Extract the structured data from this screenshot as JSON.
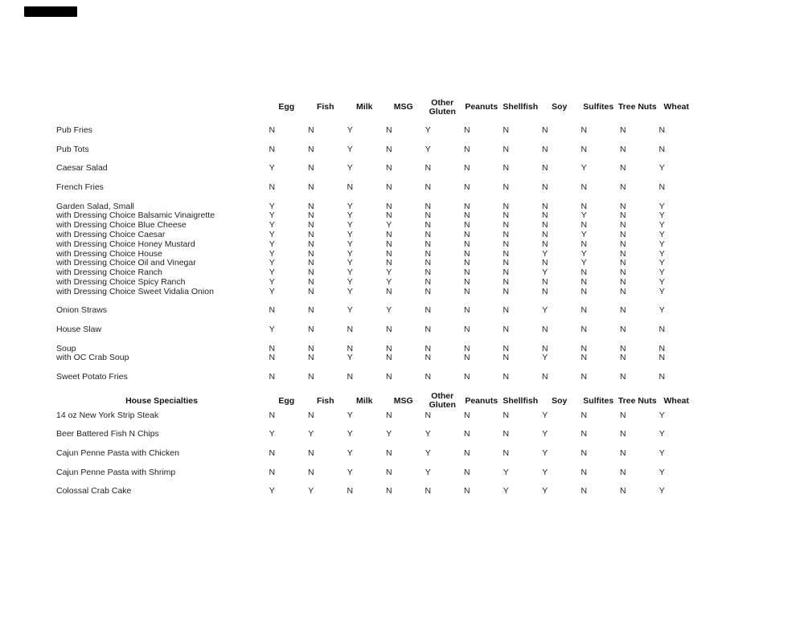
{
  "page": {
    "background": "#ffffff",
    "ink": "#1f1f1f",
    "redaction_mark": "black-redaction-bar"
  },
  "columns": [
    {
      "label": "Egg"
    },
    {
      "label": "Fish"
    },
    {
      "label": "Milk"
    },
    {
      "label": "MSG"
    },
    {
      "label": "Other Gluten",
      "lines": [
        "Other",
        "Gluten"
      ]
    },
    {
      "label": "Peanuts"
    },
    {
      "label": "Shellfish"
    },
    {
      "label": "Soy"
    },
    {
      "label": "Sulfites"
    },
    {
      "label": "Tree Nuts"
    },
    {
      "label": "Wheat"
    }
  ],
  "sections": [
    {
      "title": "",
      "rows": [
        {
          "name": "Pub Fries",
          "group_start": true,
          "values": [
            "N",
            "N",
            "Y",
            "N",
            "Y",
            "N",
            "N",
            "N",
            "N",
            "N",
            "N"
          ]
        },
        {
          "name": "Pub Tots",
          "group_start": true,
          "values": [
            "N",
            "N",
            "Y",
            "N",
            "Y",
            "N",
            "N",
            "N",
            "N",
            "N",
            "N"
          ]
        },
        {
          "name": "Caesar Salad",
          "group_start": true,
          "values": [
            "Y",
            "N",
            "Y",
            "N",
            "N",
            "N",
            "N",
            "N",
            "Y",
            "N",
            "Y"
          ]
        },
        {
          "name": "French Fries",
          "group_start": true,
          "values": [
            "N",
            "N",
            "N",
            "N",
            "N",
            "N",
            "N",
            "N",
            "N",
            "N",
            "N"
          ]
        },
        {
          "name": "Garden Salad, Small",
          "group_start": true,
          "values": [
            "Y",
            "N",
            "Y",
            "N",
            "N",
            "N",
            "N",
            "N",
            "N",
            "N",
            "Y"
          ]
        },
        {
          "name": "with Dressing Choice Balsamic Vinaigrette",
          "group_start": false,
          "values": [
            "Y",
            "N",
            "Y",
            "N",
            "N",
            "N",
            "N",
            "N",
            "Y",
            "N",
            "Y"
          ]
        },
        {
          "name": "with Dressing Choice Blue Cheese",
          "group_start": false,
          "values": [
            "Y",
            "N",
            "Y",
            "Y",
            "N",
            "N",
            "N",
            "N",
            "N",
            "N",
            "Y"
          ]
        },
        {
          "name": "with Dressing Choice Caesar",
          "group_start": false,
          "values": [
            "Y",
            "N",
            "Y",
            "N",
            "N",
            "N",
            "N",
            "N",
            "Y",
            "N",
            "Y"
          ]
        },
        {
          "name": "with Dressing Choice Honey Mustard",
          "group_start": false,
          "values": [
            "Y",
            "N",
            "Y",
            "N",
            "N",
            "N",
            "N",
            "N",
            "N",
            "N",
            "Y"
          ]
        },
        {
          "name": "with Dressing Choice House",
          "group_start": false,
          "values": [
            "Y",
            "N",
            "Y",
            "N",
            "N",
            "N",
            "N",
            "Y",
            "Y",
            "N",
            "Y"
          ]
        },
        {
          "name": "with Dressing Choice Oil and Vinegar",
          "group_start": false,
          "values": [
            "Y",
            "N",
            "Y",
            "N",
            "N",
            "N",
            "N",
            "N",
            "Y",
            "N",
            "Y"
          ]
        },
        {
          "name": "with Dressing Choice Ranch",
          "group_start": false,
          "values": [
            "Y",
            "N",
            "Y",
            "Y",
            "N",
            "N",
            "N",
            "Y",
            "N",
            "N",
            "Y"
          ]
        },
        {
          "name": "with Dressing Choice Spicy Ranch",
          "group_start": false,
          "values": [
            "Y",
            "N",
            "Y",
            "Y",
            "N",
            "N",
            "N",
            "N",
            "N",
            "N",
            "Y"
          ]
        },
        {
          "name": "with Dressing Choice Sweet Vidalia Onion",
          "group_start": false,
          "values": [
            "Y",
            "N",
            "Y",
            "N",
            "N",
            "N",
            "N",
            "N",
            "N",
            "N",
            "Y"
          ]
        },
        {
          "name": "Onion Straws",
          "group_start": true,
          "values": [
            "N",
            "N",
            "Y",
            "Y",
            "N",
            "N",
            "N",
            "Y",
            "N",
            "N",
            "Y"
          ]
        },
        {
          "name": "House Slaw",
          "group_start": true,
          "values": [
            "Y",
            "N",
            "N",
            "N",
            "N",
            "N",
            "N",
            "N",
            "N",
            "N",
            "N"
          ]
        },
        {
          "name": "Soup",
          "group_start": true,
          "values": [
            "N",
            "N",
            "N",
            "N",
            "N",
            "N",
            "N",
            "N",
            "N",
            "N",
            "N"
          ]
        },
        {
          "name": "with OC Crab Soup",
          "group_start": false,
          "values": [
            "N",
            "N",
            "Y",
            "N",
            "N",
            "N",
            "N",
            "Y",
            "N",
            "N",
            "N"
          ]
        },
        {
          "name": "Sweet Potato Fries",
          "group_start": true,
          "values": [
            "N",
            "N",
            "N",
            "N",
            "N",
            "N",
            "N",
            "N",
            "N",
            "N",
            "N"
          ]
        }
      ]
    },
    {
      "title": "House Specialties",
      "rows": [
        {
          "name": "14 oz New York Strip Steak",
          "group_start": true,
          "values": [
            "N",
            "N",
            "Y",
            "N",
            "N",
            "N",
            "N",
            "Y",
            "N",
            "N",
            "Y"
          ]
        },
        {
          "name": "Beer Battered Fish N Chips",
          "group_start": true,
          "values": [
            "Y",
            "Y",
            "Y",
            "Y",
            "Y",
            "N",
            "N",
            "Y",
            "N",
            "N",
            "Y"
          ]
        },
        {
          "name": "Cajun Penne Pasta with Chicken",
          "group_start": true,
          "values": [
            "N",
            "N",
            "Y",
            "N",
            "Y",
            "N",
            "N",
            "Y",
            "N",
            "N",
            "Y"
          ]
        },
        {
          "name": "Cajun Penne Pasta with Shrimp",
          "group_start": true,
          "values": [
            "N",
            "N",
            "Y",
            "N",
            "Y",
            "N",
            "Y",
            "Y",
            "N",
            "N",
            "Y"
          ]
        },
        {
          "name": "Colossal Crab Cake",
          "group_start": true,
          "values": [
            "Y",
            "Y",
            "N",
            "N",
            "N",
            "N",
            "Y",
            "Y",
            "N",
            "N",
            "Y"
          ]
        }
      ]
    }
  ]
}
